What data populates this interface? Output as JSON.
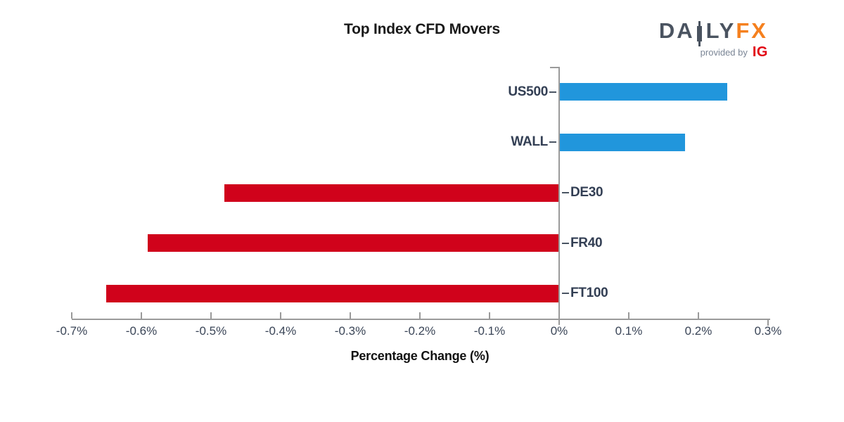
{
  "title": "Top Index CFD Movers",
  "logo": {
    "brand_da": "DA",
    "brand_ly": "LY",
    "brand_fx": "FX",
    "provided_by": "provided by",
    "ig": "IG",
    "colors": {
      "brand": "#4A5360",
      "accent": "#F5801E",
      "provided_by": "#7A8595",
      "ig": "#E20613"
    }
  },
  "chart_data": {
    "type": "bar",
    "orientation": "horizontal",
    "title": "Top Index CFD Movers",
    "xlabel": "Percentage Change (%)",
    "categories": [
      "US500",
      "WALL",
      "DE30",
      "FR40",
      "FT100"
    ],
    "values": [
      0.24,
      0.18,
      -0.48,
      -0.59,
      -0.65
    ],
    "unit": "%",
    "xlim": [
      -0.7,
      0.3
    ],
    "xticks": [
      -0.7,
      -0.6,
      -0.5,
      -0.4,
      -0.3,
      -0.2,
      -0.1,
      0,
      0.1,
      0.2,
      0.3
    ],
    "xtick_labels": [
      "-0.7%",
      "-0.6%",
      "-0.5%",
      "-0.4%",
      "-0.3%",
      "-0.2%",
      "-0.1%",
      "0%",
      "0.1%",
      "0.2%",
      "0.3%"
    ],
    "grid": false,
    "legend": false,
    "colors": {
      "positive": "#2196DC",
      "negative": "#D0021B",
      "axis": "#9A9A9A",
      "category_label": "#333F54",
      "tick_label": "#3A4557",
      "title": "#1A1A1A"
    }
  }
}
